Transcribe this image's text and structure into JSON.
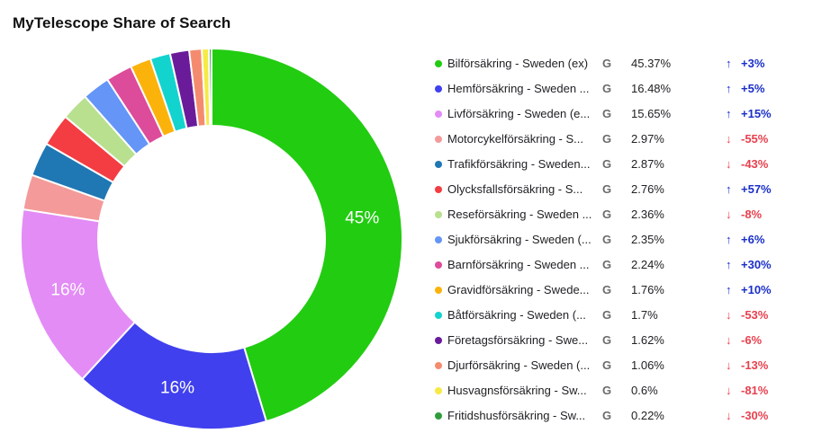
{
  "title": "MyTelescope Share of Search",
  "source_icon": "google-g-icon",
  "source_glyph": "G",
  "arrows": {
    "up": "↑",
    "down": "↓"
  },
  "colors": {
    "up": "#1a2fc9",
    "down": "#e8404e"
  },
  "chart_data": {
    "type": "pie",
    "variant": "donut",
    "slice_labels": [
      "45%",
      "16%",
      "16%"
    ],
    "series": [
      {
        "label": "Bilförsäkring - Sweden (ex)",
        "display": "45.37%",
        "value": 45.37,
        "change": "+3%",
        "direction": "up",
        "color": "#22cc11"
      },
      {
        "label": "Hemförsäkring - Sweden ...",
        "display": "16.48%",
        "value": 16.48,
        "change": "+5%",
        "direction": "up",
        "color": "#4040ee"
      },
      {
        "label": "Livförsäkring - Sweden (e...",
        "display": "15.65%",
        "value": 15.65,
        "change": "+15%",
        "direction": "up",
        "color": "#e38cf6"
      },
      {
        "label": "Motorcykelförsäkring - S...",
        "display": "2.97%",
        "value": 2.97,
        "change": "-55%",
        "direction": "down",
        "color": "#f49a9a"
      },
      {
        "label": "Trafikförsäkring - Sweden...",
        "display": "2.87%",
        "value": 2.87,
        "change": "-43%",
        "direction": "down",
        "color": "#1f77b4"
      },
      {
        "label": "Olycksfallsförsäkring - S...",
        "display": "2.76%",
        "value": 2.76,
        "change": "+57%",
        "direction": "up",
        "color": "#f33d42"
      },
      {
        "label": "Reseförsäkring - Sweden ...",
        "display": "2.36%",
        "value": 2.36,
        "change": "-8%",
        "direction": "down",
        "color": "#b8e08f"
      },
      {
        "label": "Sjukförsäkring - Sweden (...",
        "display": "2.35%",
        "value": 2.35,
        "change": "+6%",
        "direction": "up",
        "color": "#6495f7"
      },
      {
        "label": "Barnförsäkring - Sweden ...",
        "display": "2.24%",
        "value": 2.24,
        "change": "+30%",
        "direction": "up",
        "color": "#dd4c9a"
      },
      {
        "label": "Gravidförsäkring - Swede...",
        "display": "1.76%",
        "value": 1.76,
        "change": "+10%",
        "direction": "up",
        "color": "#fbb30c"
      },
      {
        "label": "Båtförsäkring - Sweden (...",
        "display": "1.7%",
        "value": 1.7,
        "change": "-53%",
        "direction": "down",
        "color": "#13d3cf"
      },
      {
        "label": "Företagsförsäkring - Swe...",
        "display": "1.62%",
        "value": 1.62,
        "change": "-6%",
        "direction": "down",
        "color": "#6a1b9a"
      },
      {
        "label": "Djurförsäkring - Sweden (...",
        "display": "1.06%",
        "value": 1.06,
        "change": "-13%",
        "direction": "down",
        "color": "#f58b6e"
      },
      {
        "label": "Husvagnsförsäkring - Sw...",
        "display": "0.6%",
        "value": 0.6,
        "change": "-81%",
        "direction": "down",
        "color": "#f6ea45"
      },
      {
        "label": "Fritidshusförsäkring - Sw...",
        "display": "0.22%",
        "value": 0.22,
        "change": "-30%",
        "direction": "down",
        "color": "#2e9e3c"
      }
    ]
  }
}
